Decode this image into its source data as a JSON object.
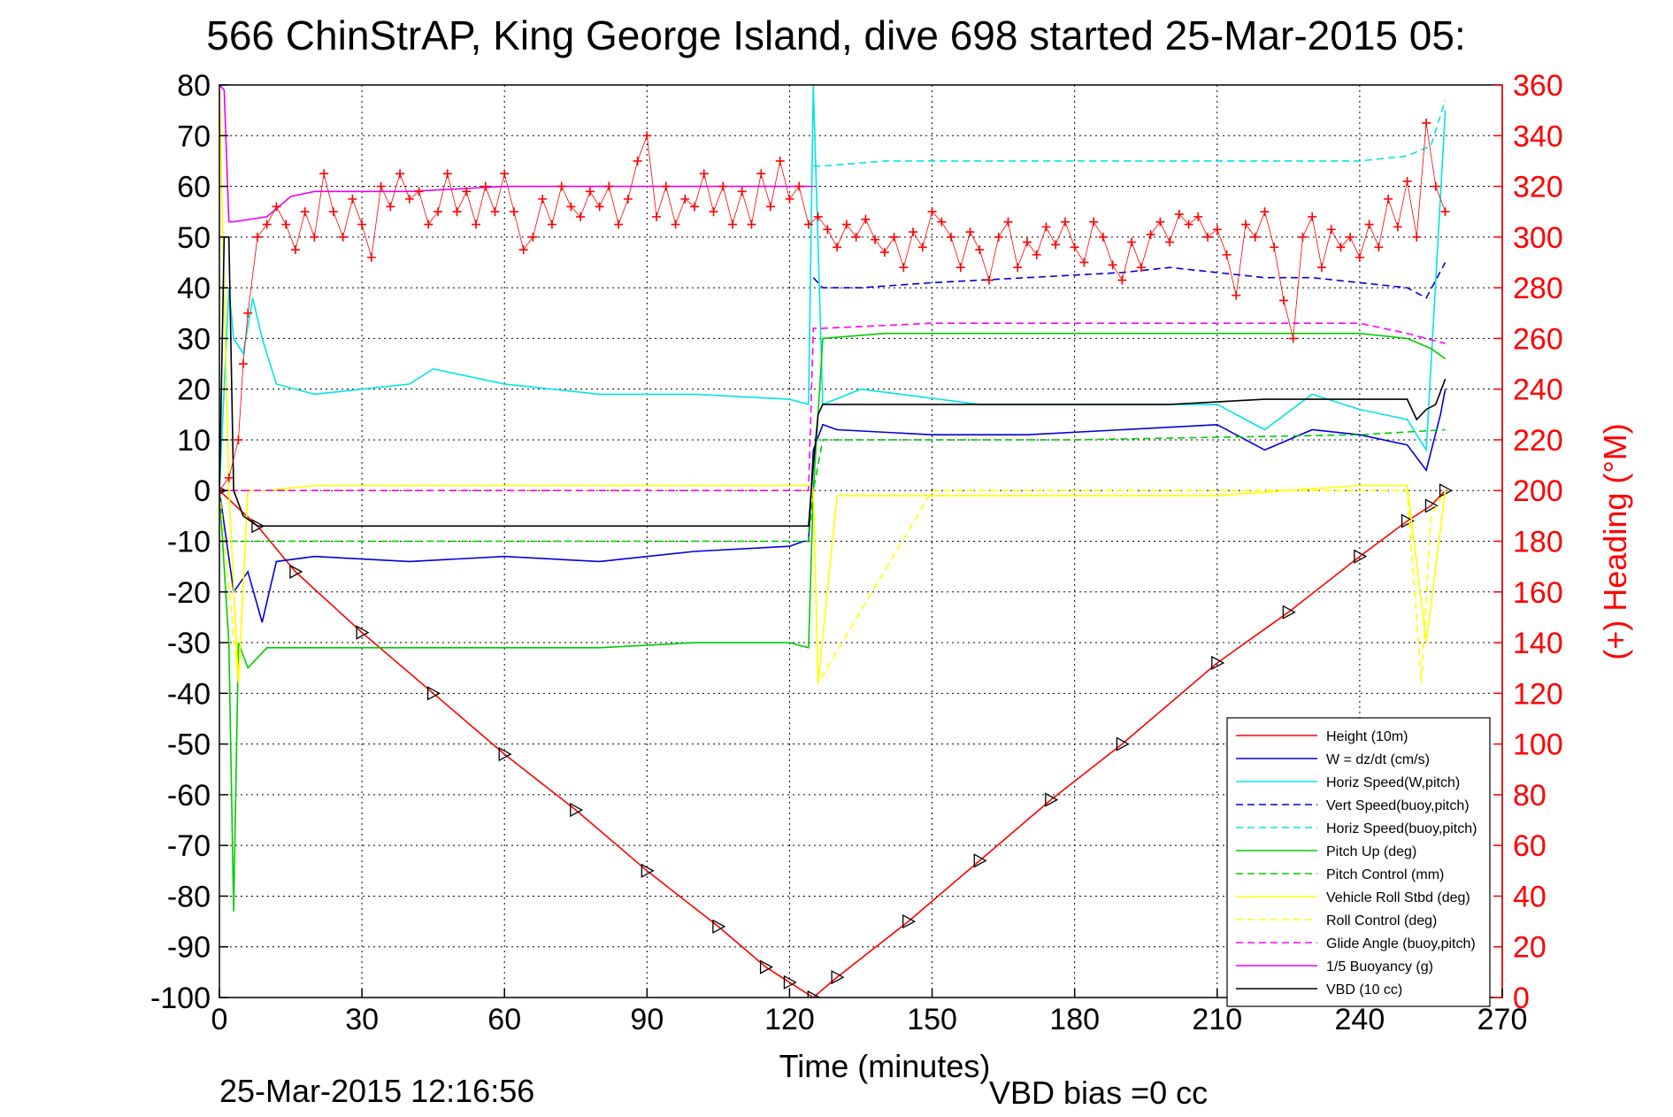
{
  "chart_data": {
    "type": "line",
    "title": "566 ChinStrAP, King George Island, dive 698 started 25-Mar-2015 05:",
    "xlabel": "Time (minutes)",
    "ylabel_right": "(+) Heading (°M)",
    "xlim": [
      0,
      270
    ],
    "ylim": [
      -100,
      80
    ],
    "ylim_right": [
      0,
      360
    ],
    "xticks": [
      "0",
      "30",
      "60",
      "90",
      "120",
      "150",
      "180",
      "210",
      "240",
      "270"
    ],
    "yticks": [
      "80",
      "70",
      "60",
      "50",
      "40",
      "30",
      "20",
      "10",
      "0",
      "-10",
      "-20",
      "-30",
      "-40",
      "-50",
      "-60",
      "-70",
      "-80",
      "-90",
      "-100"
    ],
    "yticks_right": [
      "360",
      "340",
      "320",
      "300",
      "280",
      "260",
      "240",
      "220",
      "200",
      "180",
      "160",
      "140",
      "120",
      "100",
      "80",
      "60",
      "40",
      "20",
      "0"
    ],
    "grid": true,
    "legend_position": "lower-right",
    "colors": {
      "right_axis": "#ff0000",
      "axis": "#000000",
      "grid": "#000000"
    },
    "series": [
      {
        "name": "Height (10m)",
        "color": "#ff0000",
        "style": "solid",
        "markers": "triangle",
        "x": [
          0,
          8,
          16,
          30,
          45,
          60,
          75,
          90,
          105,
          115,
          120,
          125,
          130,
          145,
          160,
          175,
          190,
          210,
          225,
          240,
          250,
          255,
          258
        ],
        "y": [
          0,
          -7,
          -16,
          -28,
          -40,
          -52,
          -63,
          -75,
          -86,
          -94,
          -97,
          -100,
          -96,
          -85,
          -73,
          -61,
          -50,
          -34,
          -24,
          -13,
          -6,
          -3,
          0
        ]
      },
      {
        "name": "W = dz/dt (cm/s)",
        "color": "#0000dd",
        "style": "solid",
        "x": [
          0,
          3,
          6,
          9,
          12,
          20,
          40,
          60,
          80,
          100,
          120,
          123,
          124,
          125,
          127,
          130,
          150,
          170,
          190,
          210,
          220,
          230,
          240,
          250,
          254,
          257,
          258
        ],
        "y": [
          0,
          -20,
          -16,
          -26,
          -14,
          -13,
          -14,
          -13,
          -14,
          -12,
          -11,
          -10,
          -10,
          8,
          13,
          12,
          11,
          11,
          12,
          13,
          8,
          12,
          11,
          9,
          4,
          15,
          20
        ]
      },
      {
        "name": "Horiz Speed(W,pitch)",
        "color": "#00e5e5",
        "style": "solid",
        "x": [
          0,
          2,
          3,
          5,
          7,
          9,
          12,
          20,
          40,
          45,
          60,
          80,
          100,
          120,
          124,
          125,
          127,
          135,
          160,
          180,
          200,
          210,
          220,
          230,
          240,
          250,
          254,
          258
        ],
        "y": [
          0,
          40,
          30,
          27,
          38,
          30,
          21,
          19,
          21,
          24,
          21,
          19,
          19,
          18,
          17,
          80,
          17,
          20,
          17,
          17,
          17,
          17,
          12,
          19,
          16,
          14,
          8,
          75
        ]
      },
      {
        "name": "Vert Speed(buoy,pitch)",
        "color": "#0000dd",
        "style": "dashed",
        "x": [
          125,
          127,
          135,
          150,
          170,
          190,
          200,
          210,
          220,
          230,
          240,
          250,
          254,
          258
        ],
        "y": [
          42,
          40,
          40,
          41,
          42,
          43,
          44,
          43,
          42,
          42,
          41,
          40,
          38,
          45
        ]
      },
      {
        "name": "Horiz Speed(buoy,pitch)",
        "color": "#00e5e5",
        "style": "dashed",
        "x": [
          125,
          127,
          140,
          160,
          180,
          200,
          220,
          240,
          250,
          255,
          258
        ],
        "y": [
          64,
          64,
          65,
          65,
          65,
          65,
          65,
          65,
          66,
          68,
          77
        ]
      },
      {
        "name": "Pitch Up (deg)",
        "color": "#00cc00",
        "style": "solid",
        "x": [
          0,
          2,
          3,
          4,
          6,
          10,
          20,
          40,
          60,
          80,
          100,
          120,
          124,
          125,
          127,
          140,
          160,
          180,
          200,
          220,
          240,
          250,
          255,
          258
        ],
        "y": [
          0,
          -30,
          -83,
          -30,
          -35,
          -31,
          -31,
          -31,
          -31,
          -31,
          -30,
          -30,
          -31,
          0,
          30,
          31,
          31,
          31,
          31,
          31,
          31,
          30,
          28,
          26
        ]
      },
      {
        "name": "Pitch Control (mm)",
        "color": "#00cc00",
        "style": "dashed",
        "x": [
          0,
          5,
          20,
          60,
          100,
          124,
          125,
          127,
          180,
          240,
          258
        ],
        "y": [
          -10,
          -10,
          -10,
          -10,
          -10,
          -10,
          0,
          10,
          10,
          11,
          12
        ]
      },
      {
        "name": "Vehicle Roll Stbd (deg)",
        "color": "#ffff00",
        "style": "solid",
        "x": [
          0,
          2,
          4,
          6,
          10,
          20,
          40,
          60,
          80,
          100,
          120,
          124,
          125,
          126,
          130,
          150,
          180,
          210,
          240,
          250,
          254,
          258
        ],
        "y": [
          80,
          0,
          -38,
          0,
          0,
          1,
          1,
          1,
          1,
          1,
          1,
          1,
          0,
          -38,
          -1,
          -1,
          -1,
          -1,
          1,
          1,
          -30,
          0
        ]
      },
      {
        "name": "Roll Control (deg)",
        "color": "#ffff00",
        "style": "dashed",
        "x": [
          0,
          4,
          6,
          30,
          60,
          90,
          120,
          125,
          126,
          150,
          180,
          210,
          240,
          250,
          253,
          255,
          258
        ],
        "y": [
          0,
          -38,
          0,
          0,
          0,
          0,
          0,
          0,
          -38,
          0,
          0,
          0,
          0,
          0,
          -38,
          -5,
          0
        ]
      },
      {
        "name": "Glide Angle (buoy,pitch)",
        "color": "#ff00ff",
        "style": "dashed",
        "x": [
          0,
          60,
          124,
          125,
          127,
          150,
          180,
          210,
          240,
          250,
          258
        ],
        "y": [
          0,
          0,
          0,
          32,
          32,
          33,
          33,
          33,
          33,
          31,
          29
        ]
      },
      {
        "name": "1/5 Buoyancy (g)",
        "color": "#ee00ee",
        "style": "solid",
        "x": [
          0,
          1,
          2,
          3,
          10,
          15,
          20,
          40,
          60,
          80,
          100,
          124,
          125
        ],
        "y": [
          80,
          79,
          53,
          53,
          54,
          58,
          59,
          59,
          60,
          60,
          60,
          60,
          60
        ]
      },
      {
        "name": "VBD (10 cc)",
        "color": "#000000",
        "style": "solid",
        "x": [
          0,
          1,
          2,
          3,
          5,
          8,
          124,
          125,
          126,
          127,
          128,
          200,
          220,
          250,
          252,
          254,
          256,
          258
        ],
        "y": [
          -1,
          50,
          50,
          0,
          -5,
          -7,
          -7,
          5,
          15,
          17,
          17,
          17,
          18,
          18,
          14,
          16,
          17,
          22
        ]
      }
    ],
    "heading_series": {
      "name": "(+) Heading",
      "axis": "right",
      "color": "#ff0000",
      "marker": "+",
      "x": [
        0,
        2,
        4,
        5,
        6,
        8,
        10,
        12,
        14,
        16,
        18,
        20,
        22,
        24,
        26,
        28,
        30,
        32,
        34,
        36,
        38,
        40,
        42,
        44,
        46,
        48,
        50,
        52,
        54,
        56,
        58,
        60,
        62,
        64,
        66,
        68,
        70,
        72,
        74,
        76,
        78,
        80,
        82,
        84,
        86,
        88,
        90,
        92,
        94,
        96,
        98,
        100,
        102,
        104,
        106,
        108,
        110,
        112,
        114,
        116,
        118,
        120,
        122,
        124,
        126,
        128,
        130,
        132,
        134,
        136,
        138,
        140,
        142,
        144,
        146,
        148,
        150,
        152,
        154,
        156,
        158,
        160,
        162,
        164,
        166,
        168,
        170,
        172,
        174,
        176,
        178,
        180,
        182,
        184,
        186,
        188,
        190,
        192,
        194,
        196,
        198,
        200,
        202,
        204,
        206,
        208,
        210,
        212,
        214,
        216,
        218,
        220,
        222,
        224,
        226,
        228,
        230,
        232,
        234,
        236,
        238,
        240,
        242,
        244,
        246,
        248,
        250,
        252,
        254,
        256,
        258
      ],
      "y": [
        200,
        205,
        220,
        250,
        270,
        300,
        305,
        312,
        305,
        295,
        310,
        300,
        325,
        310,
        300,
        315,
        305,
        292,
        320,
        312,
        325,
        315,
        318,
        305,
        310,
        325,
        310,
        318,
        305,
        320,
        310,
        325,
        310,
        295,
        300,
        315,
        305,
        320,
        312,
        308,
        318,
        312,
        320,
        305,
        315,
        330,
        340,
        308,
        320,
        305,
        315,
        312,
        325,
        310,
        320,
        305,
        318,
        305,
        325,
        312,
        330,
        315,
        320,
        305,
        308,
        303,
        296,
        305,
        300,
        307,
        299,
        294,
        300,
        288,
        302,
        296,
        310,
        306,
        300,
        288,
        302,
        295,
        283,
        300,
        306,
        288,
        298,
        293,
        304,
        297,
        306,
        296,
        290,
        306,
        300,
        289,
        283,
        298,
        288,
        301,
        306,
        298,
        309,
        305,
        308,
        300,
        303,
        293,
        277,
        305,
        300,
        310,
        296,
        275,
        260,
        300,
        308,
        288,
        303,
        296,
        300,
        292,
        305,
        296,
        315,
        304,
        322,
        300,
        345,
        320,
        310
      ]
    },
    "timestamp": "25-Mar-2015 12:16:56",
    "vbd_note": "VBD bias =0 cc"
  }
}
